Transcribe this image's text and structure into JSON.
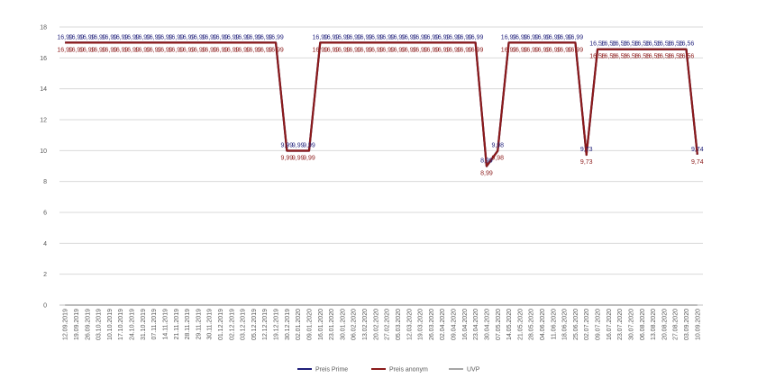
{
  "chart_data": {
    "type": "line",
    "categories": [
      "12.09.2019",
      "19.09.2019",
      "26.09.2019",
      "03.10.2019",
      "10.10.2019",
      "17.10.2019",
      "24.10.2019",
      "31.10.2019",
      "07.11.2019",
      "14.11.2019",
      "21.11.2019",
      "28.11.2019",
      "29.11.2019",
      "30.11.2019",
      "01.12.2019",
      "02.12.2019",
      "03.12.2019",
      "05.12.2019",
      "12.12.2019",
      "19.12.2019",
      "30.12.2019",
      "02.01.2020",
      "09.01.2020",
      "16.01.2020",
      "23.01.2020",
      "30.01.2020",
      "06.02.2020",
      "13.02.2020",
      "20.02.2020",
      "27.02.2020",
      "05.03.2020",
      "12.03.2020",
      "19.03.2020",
      "26.03.2020",
      "02.04.2020",
      "09.04.2020",
      "16.04.2020",
      "23.04.2020",
      "30.04.2020",
      "07.05.2020",
      "14.05.2020",
      "21.05.2020",
      "28.05.2020",
      "04.06.2020",
      "11.06.2020",
      "18.06.2020",
      "25.06.2020",
      "02.07.2020",
      "09.07.2020",
      "16.07.2020",
      "23.07.2020",
      "30.07.2020",
      "06.08.2020",
      "13.08.2020",
      "20.08.2020",
      "27.08.2020",
      "03.09.2020",
      "10.09.2020"
    ],
    "series": [
      {
        "name": "Preis Prime",
        "color": "#1f1f7a",
        "label_position": "above",
        "values": [
          16.99,
          16.99,
          16.99,
          16.99,
          16.99,
          16.99,
          16.99,
          16.99,
          16.99,
          16.99,
          16.99,
          16.99,
          16.99,
          16.99,
          16.99,
          16.99,
          16.99,
          16.99,
          16.99,
          16.99,
          9.99,
          9.99,
          9.99,
          16.99,
          16.99,
          16.99,
          16.99,
          16.99,
          16.99,
          16.99,
          16.99,
          16.99,
          16.99,
          16.99,
          16.99,
          16.99,
          16.99,
          16.99,
          8.99,
          9.98,
          16.99,
          16.99,
          16.99,
          16.99,
          16.99,
          16.99,
          16.99,
          9.73,
          16.56,
          16.56,
          16.56,
          16.56,
          16.56,
          16.56,
          16.56,
          16.56,
          16.56,
          9.74
        ],
        "labels": [
          "16,99",
          "16,99",
          "16,99",
          "16,99",
          "16,99",
          "16,99",
          "16,99",
          "16,99",
          "16,99",
          "16,99",
          "16,99",
          "16,99",
          "16,99",
          "16,99",
          "16,99",
          "16,99",
          "16,99",
          "16,99",
          "16,99",
          "16,99",
          "9,99",
          "9,99",
          "9,99",
          "16,99",
          "16,99",
          "16,99",
          "16,99",
          "16,99",
          "16,99",
          "16,99",
          "16,99",
          "16,99",
          "16,99",
          "16,99",
          "16,99",
          "16,99",
          "16,99",
          "16,99",
          "8,99",
          "9,98",
          "16,99",
          "16,99",
          "16,99",
          "16,99",
          "16,99",
          "16,99",
          "16,99",
          "9,73",
          "16,56",
          "16,56",
          "16,56",
          "16,56",
          "16,56",
          "16,56",
          "16,56",
          "16,56",
          "16,56",
          "9,74"
        ]
      },
      {
        "name": "Preis anonym",
        "color": "#8b1a1a",
        "label_position": "below",
        "values": [
          16.99,
          16.99,
          16.99,
          16.99,
          16.99,
          16.99,
          16.99,
          16.99,
          16.99,
          16.99,
          16.99,
          16.99,
          16.99,
          16.99,
          16.99,
          16.99,
          16.99,
          16.99,
          16.99,
          16.99,
          9.99,
          9.99,
          9.99,
          16.99,
          16.99,
          16.99,
          16.99,
          16.99,
          16.99,
          16.99,
          16.99,
          16.99,
          16.99,
          16.99,
          16.99,
          16.99,
          16.99,
          16.99,
          8.99,
          9.98,
          16.99,
          16.99,
          16.99,
          16.99,
          16.99,
          16.99,
          16.99,
          9.73,
          16.56,
          16.56,
          16.56,
          16.56,
          16.56,
          16.56,
          16.56,
          16.56,
          16.56,
          9.74
        ],
        "labels": [
          "16,99",
          "16,99",
          "16,99",
          "16,99",
          "16,99",
          "16,99",
          "16,99",
          "16,99",
          "16,99",
          "16,99",
          "16,99",
          "16,99",
          "16,99",
          "16,99",
          "16,99",
          "16,99",
          "16,99",
          "16,99",
          "16,99",
          "16,99",
          "9,99",
          "9,99",
          "9,99",
          "16,99",
          "16,99",
          "16,99",
          "16,99",
          "16,99",
          "16,99",
          "16,99",
          "16,99",
          "16,99",
          "16,99",
          "16,99",
          "16,99",
          "16,99",
          "16,99",
          "16,99",
          "8,99",
          "9,98",
          "16,99",
          "16,99",
          "16,99",
          "16,99",
          "16,99",
          "16,99",
          "16,99",
          "9,73",
          "16,56",
          "16,56",
          "16,56",
          "16,56",
          "16,56",
          "16,56",
          "16,56",
          "16,56",
          "16,56",
          "9,74"
        ]
      },
      {
        "name": "UVP",
        "color": "#a6a6a6",
        "label_position": "none",
        "values": [
          0,
          0,
          0,
          0,
          0,
          0,
          0,
          0,
          0,
          0,
          0,
          0,
          0,
          0,
          0,
          0,
          0,
          0,
          0,
          0,
          0,
          0,
          0,
          0,
          0,
          0,
          0,
          0,
          0,
          0,
          0,
          0,
          0,
          0,
          0,
          0,
          0,
          0,
          0,
          0,
          0,
          0,
          0,
          0,
          0,
          0,
          0,
          0,
          0,
          0,
          0,
          0,
          0,
          0,
          0,
          0,
          0,
          0
        ]
      }
    ],
    "ylim": [
      0,
      18
    ],
    "yticks": [
      0,
      2,
      4,
      6,
      8,
      10,
      12,
      14,
      16,
      18
    ],
    "ytick_labels": [
      "0",
      "2",
      "4",
      "6",
      "8",
      "10",
      "12",
      "14",
      "16",
      "18"
    ],
    "grid": true,
    "legend_position": "bottom"
  }
}
